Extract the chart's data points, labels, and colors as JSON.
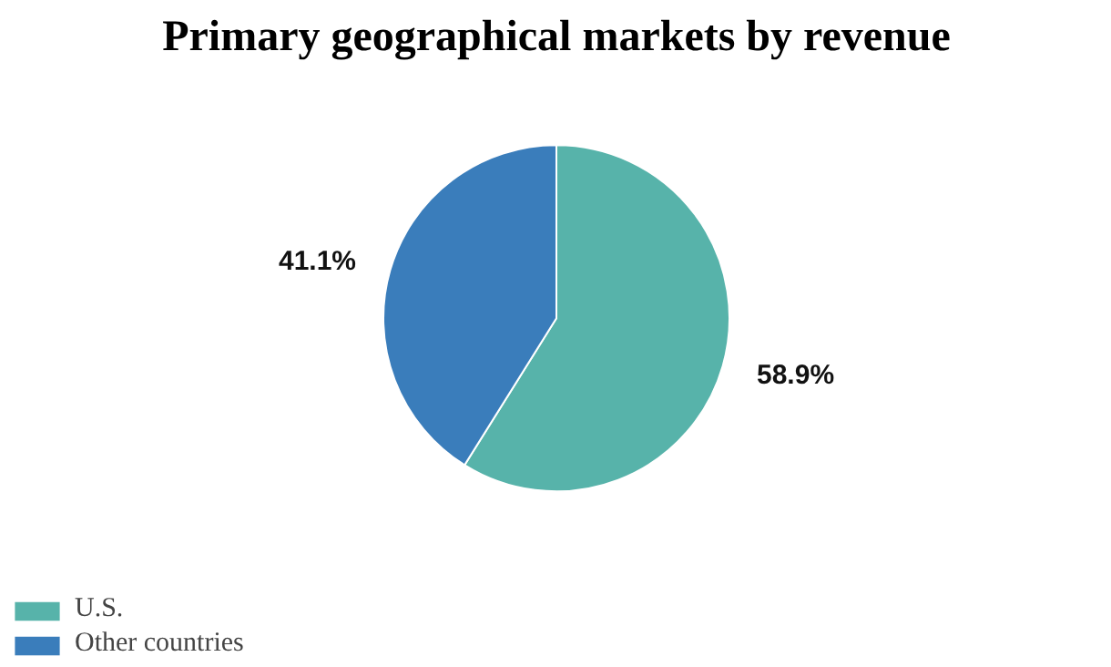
{
  "chart_data": {
    "type": "pie",
    "title": "Primary geographical markets by revenue",
    "categories": [
      "U.S.",
      "Other countries"
    ],
    "values": [
      58.9,
      41.1
    ],
    "colors": [
      "#57b3aa",
      "#3a7dbb"
    ],
    "value_labels": [
      "58.9%",
      "41.1%"
    ],
    "legend": "bottom left"
  }
}
